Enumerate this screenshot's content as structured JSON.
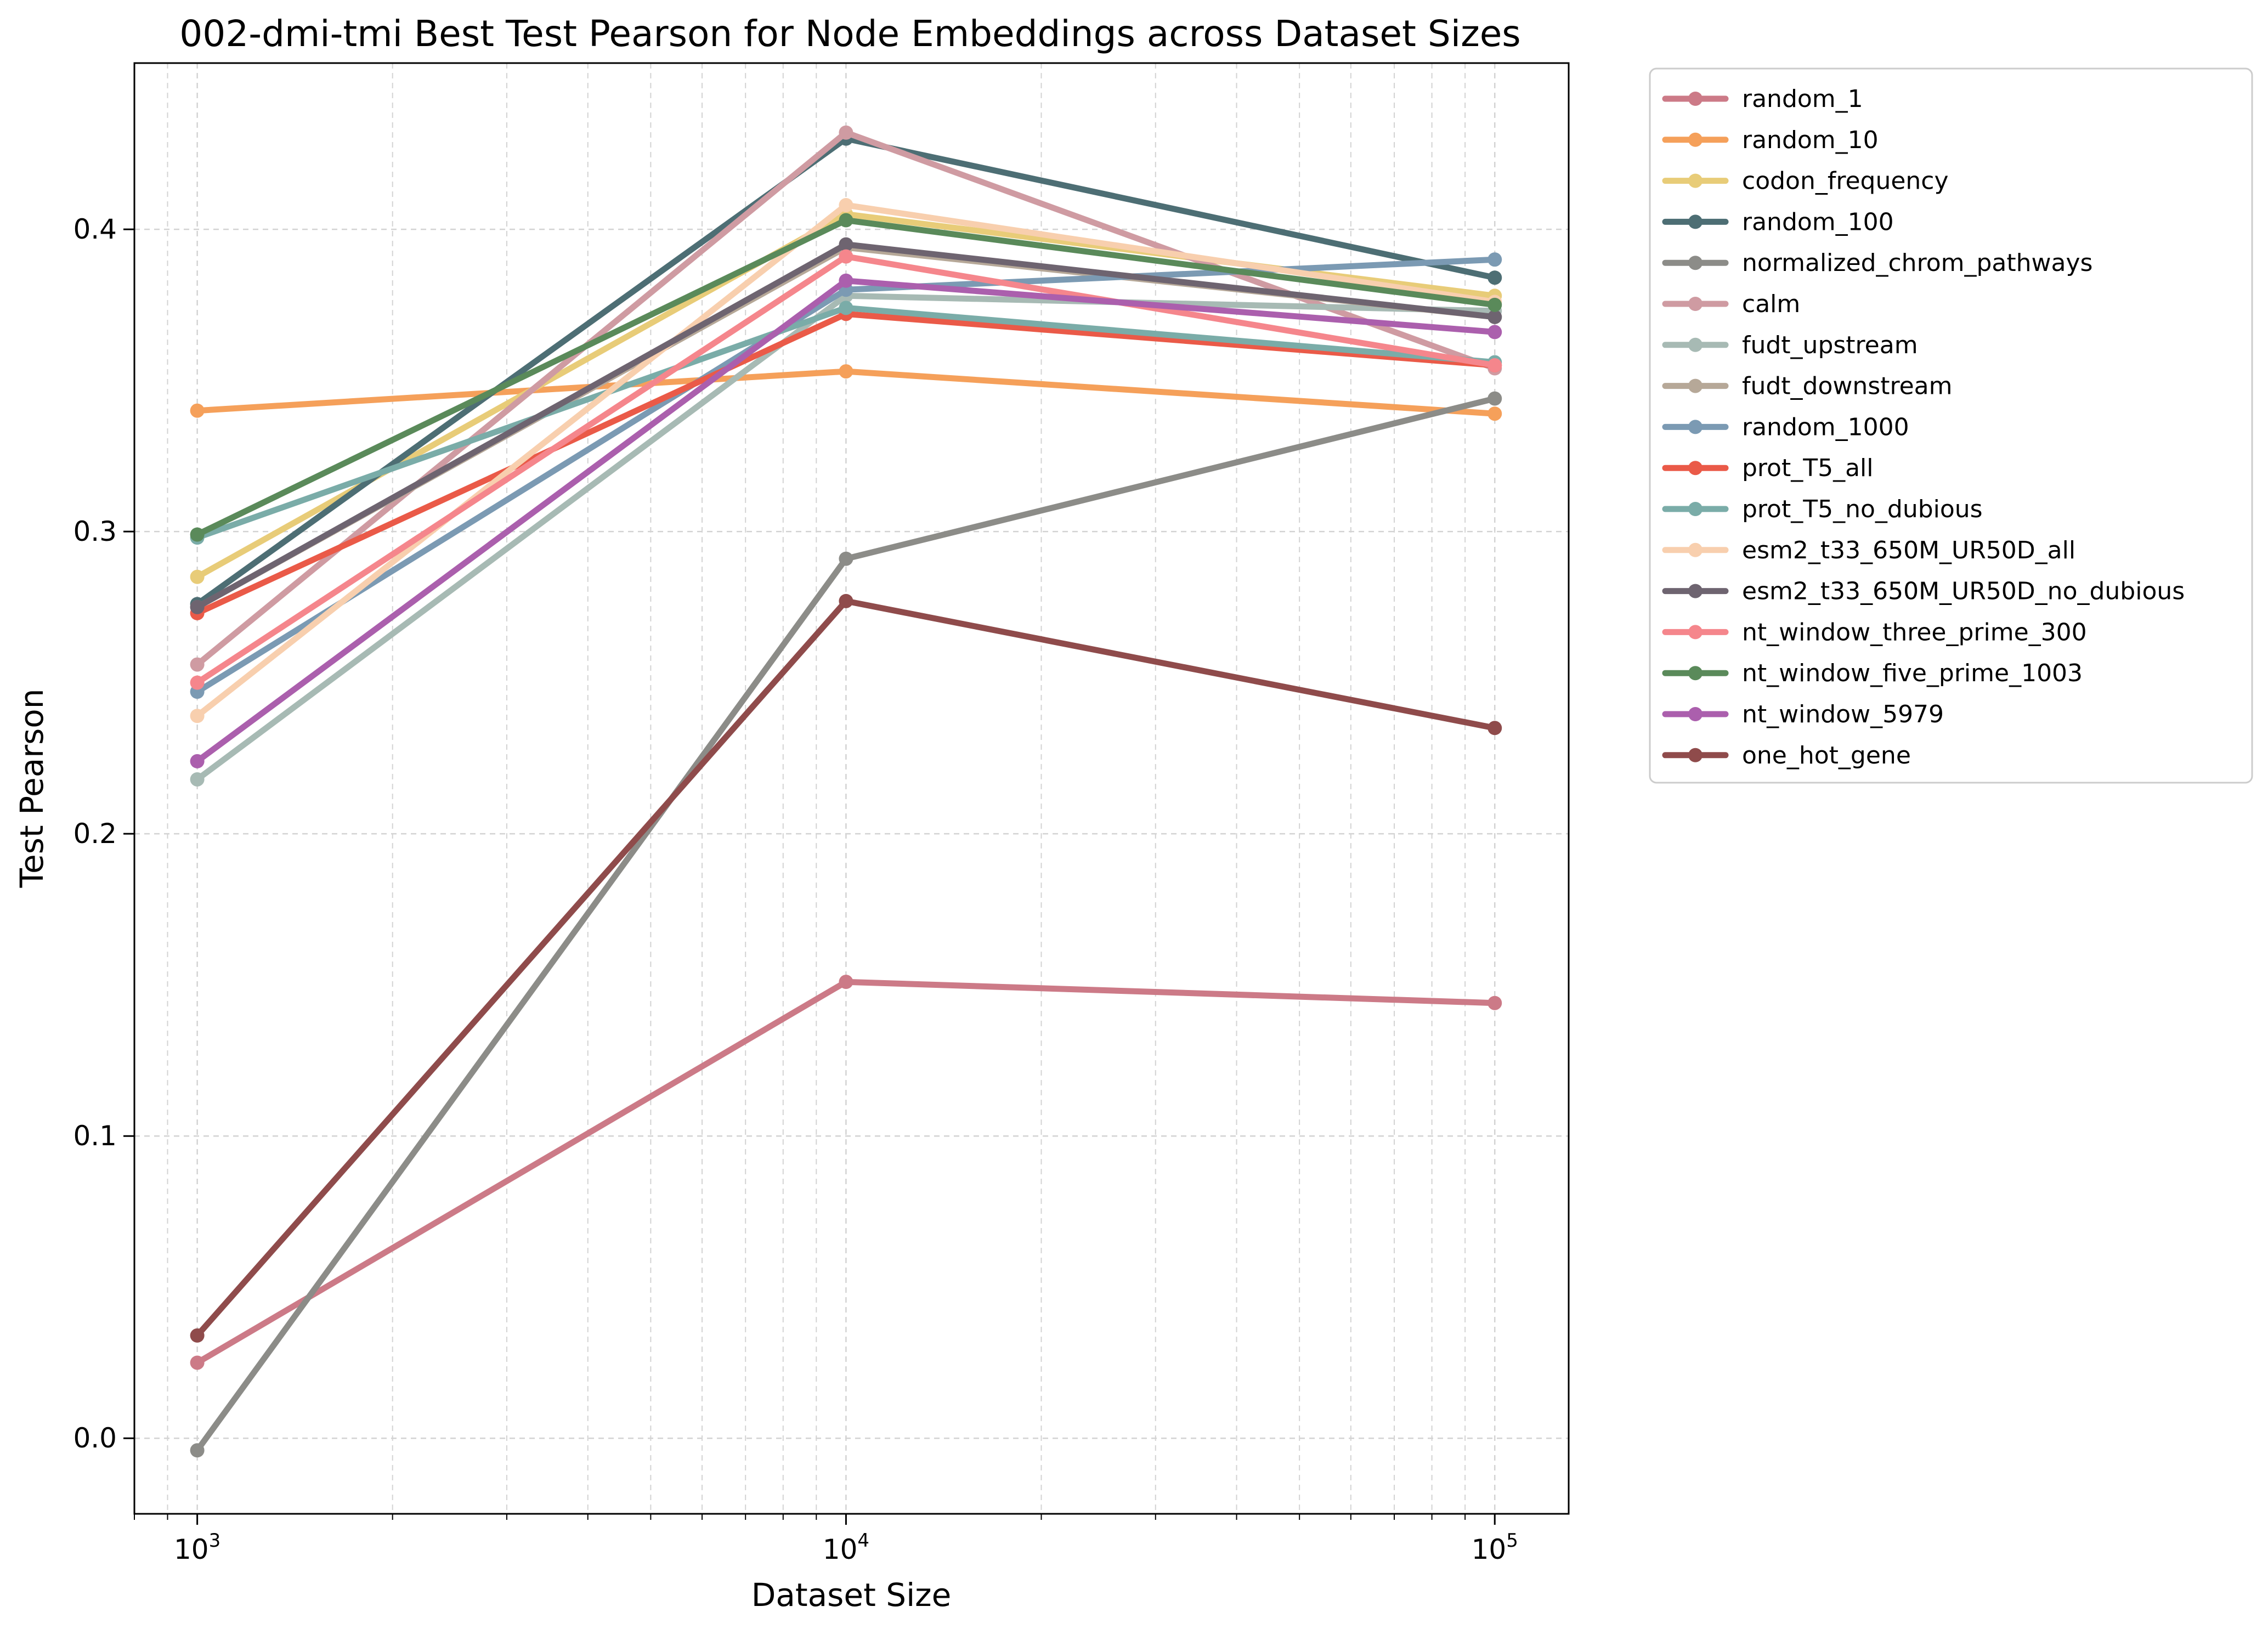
{
  "chart_data": {
    "type": "line",
    "title": "002-dmi-tmi Best Test Pearson for Node Embeddings across Dataset Sizes",
    "xlabel": "Dataset Size",
    "ylabel": "Test Pearson",
    "xscale": "log",
    "xlim": [
      800,
      130000
    ],
    "ylim": [
      -0.025,
      0.455
    ],
    "x": [
      1000,
      10000,
      100000
    ],
    "x_tick_labels": [
      {
        "base": "10",
        "exp": "3"
      },
      {
        "base": "10",
        "exp": "4"
      },
      {
        "base": "10",
        "exp": "5"
      }
    ],
    "y_ticks": [
      0.0,
      0.1,
      0.2,
      0.3,
      0.4
    ],
    "y_tick_labels": [
      "0.0",
      "0.1",
      "0.2",
      "0.3",
      "0.4"
    ],
    "grid": true,
    "legend_position": "outside-right-top",
    "series": [
      {
        "name": "random_1",
        "color": "#cc7a87",
        "values": [
          0.025,
          0.151,
          0.144
        ]
      },
      {
        "name": "random_10",
        "color": "#f5a05a",
        "values": [
          0.34,
          0.353,
          0.339
        ]
      },
      {
        "name": "codon_frequency",
        "color": "#e8cc78",
        "values": [
          0.285,
          0.405,
          0.378
        ]
      },
      {
        "name": "random_100",
        "color": "#4d6e74",
        "values": [
          0.276,
          0.43,
          0.384
        ]
      },
      {
        "name": "normalized_chrom_pathways",
        "color": "#8c8c88",
        "values": [
          -0.004,
          0.291,
          0.344
        ]
      },
      {
        "name": "calm",
        "color": "#cf9ba2",
        "values": [
          0.256,
          0.432,
          0.354
        ]
      },
      {
        "name": "fudt_upstream",
        "color": "#a7bab4",
        "values": [
          0.218,
          0.378,
          0.373
        ]
      },
      {
        "name": "fudt_downstream",
        "color": "#b6a898",
        "values": [
          0.275,
          0.394,
          0.371
        ]
      },
      {
        "name": "random_1000",
        "color": "#7b9ab3",
        "values": [
          0.247,
          0.38,
          0.39
        ]
      },
      {
        "name": "prot_T5_all",
        "color": "#ea5a48",
        "values": [
          0.273,
          0.372,
          0.355
        ]
      },
      {
        "name": "prot_T5_no_dubious",
        "color": "#7aaca8",
        "values": [
          0.298,
          0.374,
          0.356
        ]
      },
      {
        "name": "esm2_t33_650M_UR50D_all",
        "color": "#f8cfae",
        "values": [
          0.239,
          0.408,
          0.376
        ]
      },
      {
        "name": "esm2_t33_650M_UR50D_no_dubious",
        "color": "#6e6470",
        "values": [
          0.275,
          0.395,
          0.371
        ]
      },
      {
        "name": "nt_window_three_prime_300",
        "color": "#f5868c",
        "values": [
          0.25,
          0.391,
          0.355
        ]
      },
      {
        "name": "nt_window_five_prime_1003",
        "color": "#5a8a5a",
        "values": [
          0.299,
          0.403,
          0.375
        ]
      },
      {
        "name": "nt_window_5979",
        "color": "#ab5fad",
        "values": [
          0.224,
          0.383,
          0.366
        ]
      },
      {
        "name": "one_hot_gene",
        "color": "#8f4b4b",
        "values": [
          0.034,
          0.277,
          0.235
        ]
      }
    ]
  }
}
